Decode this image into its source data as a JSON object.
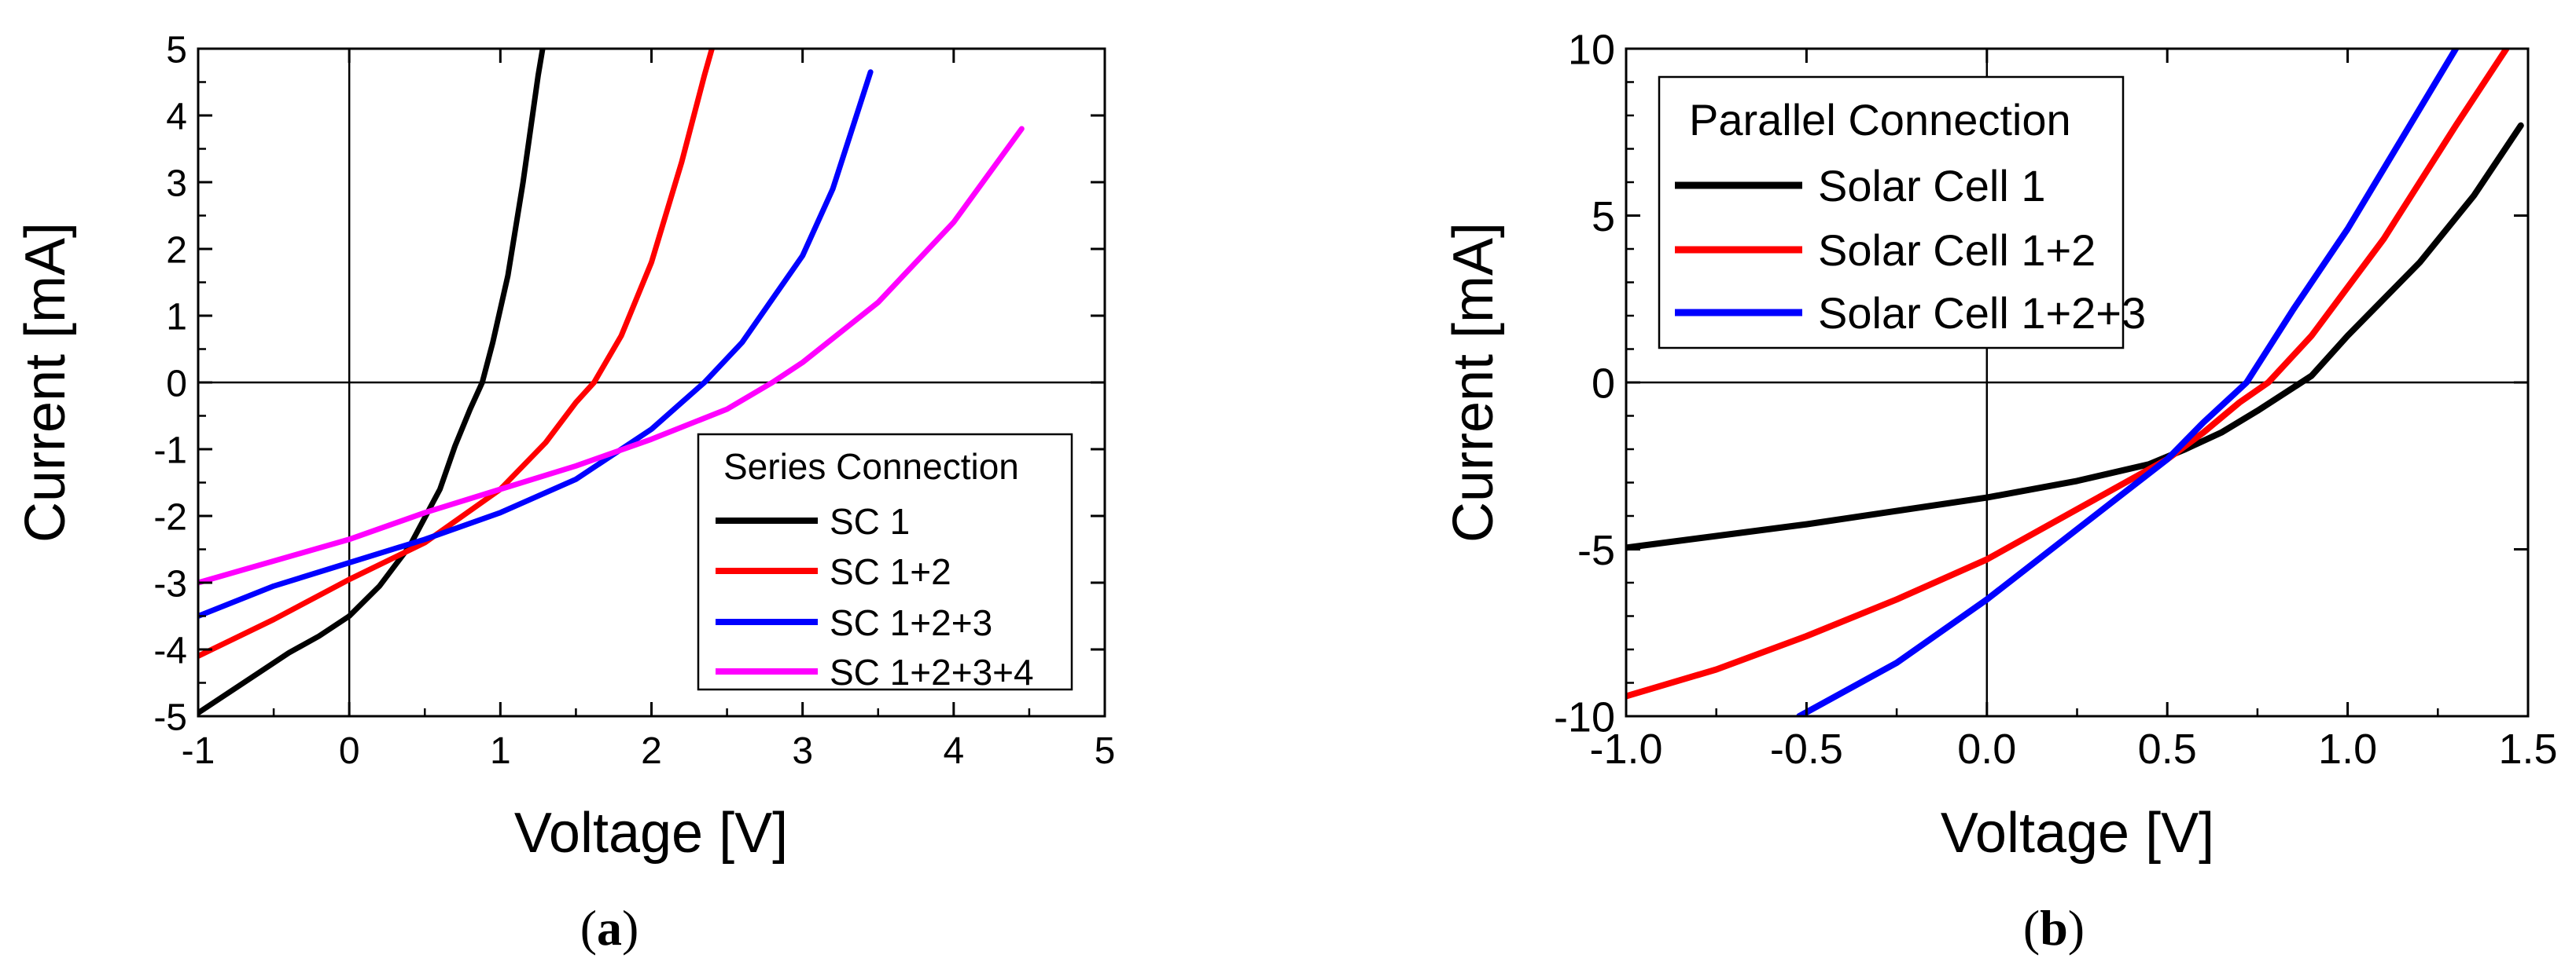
{
  "chart_data": [
    {
      "type": "line",
      "panel_label": "a",
      "xlabel": "Voltage [V]",
      "ylabel": "Current [mA]",
      "xlim": [
        -1,
        5
      ],
      "ylim": [
        -5,
        5
      ],
      "x_ticks": [
        "-1",
        "0",
        "1",
        "2",
        "3",
        "4",
        "5"
      ],
      "y_ticks": [
        "-5",
        "-4",
        "-3",
        "-2",
        "-1",
        "0",
        "1",
        "2",
        "3",
        "4",
        "5"
      ],
      "grid": false,
      "zero_lines": true,
      "legend": {
        "title": "Series Connection",
        "position": "bottom-right",
        "entries": [
          "SC 1",
          "SC 1+2",
          "SC 1+2+3",
          "SC 1+2+3+4"
        ]
      },
      "series": [
        {
          "name": "SC 1",
          "color": "#000000",
          "x": [
            -1,
            -0.8,
            -0.6,
            -0.4,
            -0.2,
            0,
            0.2,
            0.4,
            0.6,
            0.7,
            0.8,
            0.88,
            0.95,
            1.05,
            1.15,
            1.25,
            1.28
          ],
          "y": [
            -4.95,
            -4.65,
            -4.35,
            -4.05,
            -3.8,
            -3.5,
            -3.05,
            -2.45,
            -1.6,
            -0.95,
            -0.4,
            0,
            0.6,
            1.6,
            3.0,
            4.6,
            5.0
          ]
        },
        {
          "name": "SC 1+2",
          "color": "#ff0000",
          "x": [
            -1,
            -0.5,
            0,
            0.5,
            1,
            1.3,
            1.5,
            1.62,
            1.8,
            2.0,
            2.2,
            2.35,
            2.4
          ],
          "y": [
            -4.1,
            -3.55,
            -2.95,
            -2.4,
            -1.6,
            -0.9,
            -0.3,
            0,
            0.7,
            1.8,
            3.3,
            4.6,
            5.0
          ]
        },
        {
          "name": "SC 1+2+3",
          "color": "#0000ff",
          "x": [
            -1,
            -0.5,
            0,
            0.5,
            1,
            1.5,
            2.0,
            2.2,
            2.35,
            2.6,
            3.0,
            3.2,
            3.45
          ],
          "y": [
            -3.5,
            -3.05,
            -2.7,
            -2.35,
            -1.95,
            -1.45,
            -0.7,
            -0.3,
            0,
            0.6,
            1.9,
            2.9,
            4.65
          ]
        },
        {
          "name": "SC 1+2+3+4",
          "color": "#ff00ff",
          "x": [
            -1,
            0,
            0.5,
            1,
            1.5,
            2,
            2.5,
            2.8,
            3.0,
            3.5,
            4.0,
            4.45
          ],
          "y": [
            -3.0,
            -2.35,
            -1.95,
            -1.6,
            -1.25,
            -0.85,
            -0.4,
            0,
            0.3,
            1.2,
            2.4,
            3.8
          ]
        }
      ]
    },
    {
      "type": "line",
      "panel_label": "b",
      "xlabel": "Voltage [V]",
      "ylabel": "Current [mA]",
      "xlim": [
        -1.0,
        1.5
      ],
      "ylim": [
        -10,
        10
      ],
      "x_ticks": [
        "-1.0",
        "-0.5",
        "0.0",
        "0.5",
        "1.0",
        "1.5"
      ],
      "y_ticks": [
        "-10",
        "-5",
        "0",
        "5",
        "10"
      ],
      "grid": false,
      "zero_lines": true,
      "legend": {
        "title": "Parallel Connection",
        "position": "top-left",
        "entries": [
          "Solar Cell 1",
          "Solar Cell 1+2",
          "Solar Cell 1+2+3"
        ]
      },
      "series": [
        {
          "name": "Solar Cell 1",
          "color": "#000000",
          "x": [
            -1.0,
            -0.75,
            -0.5,
            -0.25,
            0,
            0.25,
            0.45,
            0.55,
            0.65,
            0.75,
            0.85,
            0.9,
            1.0,
            1.2,
            1.35,
            1.48
          ],
          "y": [
            -4.95,
            -4.6,
            -4.25,
            -3.85,
            -3.45,
            -2.95,
            -2.45,
            -2.0,
            -1.5,
            -0.85,
            -0.15,
            0.2,
            1.4,
            3.6,
            5.6,
            7.7
          ]
        },
        {
          "name": "Solar Cell 1+2",
          "color": "#ff0000",
          "x": [
            -1.0,
            -0.75,
            -0.5,
            -0.25,
            0,
            0.25,
            0.5,
            0.6,
            0.7,
            0.78,
            0.9,
            1.1,
            1.3,
            1.44
          ],
          "y": [
            -9.4,
            -8.6,
            -7.6,
            -6.5,
            -5.3,
            -3.8,
            -2.3,
            -1.5,
            -0.6,
            0,
            1.4,
            4.3,
            7.7,
            10.0
          ]
        },
        {
          "name": "Solar Cell 1+2+3",
          "color": "#0000ff",
          "x": [
            -0.52,
            -0.25,
            0,
            0.25,
            0.5,
            0.6,
            0.7,
            0.72,
            0.85,
            1.0,
            1.15,
            1.3
          ],
          "y": [
            -10.0,
            -8.4,
            -6.5,
            -4.4,
            -2.3,
            -1.2,
            -0.2,
            0,
            2.2,
            4.6,
            7.3,
            10.0
          ]
        }
      ]
    }
  ]
}
